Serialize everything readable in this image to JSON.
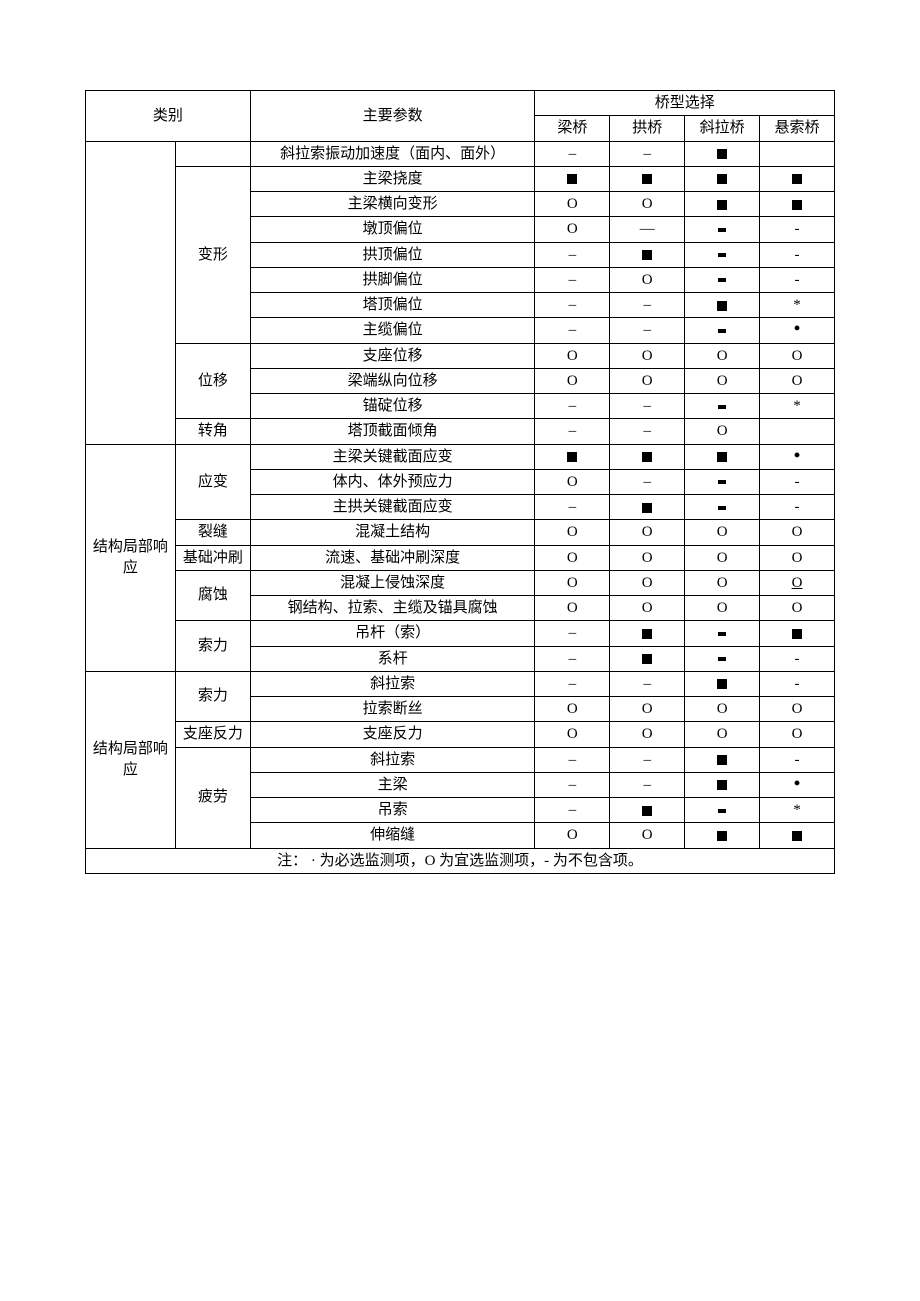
{
  "header": {
    "category": "类别",
    "param": "主要参数",
    "group": "桥型选择",
    "bridges": [
      "梁桥",
      "拱桥",
      "斜拉桥",
      "悬索桥"
    ]
  },
  "rows": [
    {
      "sub": "",
      "param": "斜拉索振动加速度（面内、面外）",
      "cells": [
        "–",
        "–",
        "sq",
        ""
      ]
    },
    {
      "sub": "变形",
      "param": "主梁挠度",
      "cells": [
        "sq",
        "sq",
        "sq",
        "sq"
      ]
    },
    {
      "sub": "",
      "param": "主梁横向变形",
      "cells": [
        "O",
        "O",
        "sq",
        "sq"
      ]
    },
    {
      "sub": "",
      "param": "墩顶偏位",
      "cells": [
        "O",
        "—",
        "dash",
        "-"
      ]
    },
    {
      "sub": "",
      "param": "拱顶偏位",
      "cells": [
        "–",
        "sq",
        "dash",
        "-"
      ]
    },
    {
      "sub": "",
      "param": "拱脚偏位",
      "cells": [
        "–",
        "O",
        "dash",
        "-"
      ]
    },
    {
      "sub": "",
      "param": "塔顶偏位",
      "cells": [
        "–",
        "–",
        "sq",
        "*"
      ]
    },
    {
      "sub": "",
      "param": "主缆偏位",
      "cells": [
        "–",
        "–",
        "dash",
        "dot"
      ]
    },
    {
      "sub": "位移",
      "param": "支座位移",
      "cells": [
        "O",
        "O",
        "O",
        "O"
      ]
    },
    {
      "sub": "",
      "param": "梁端纵向位移",
      "cells": [
        "O",
        "O",
        "O",
        "O"
      ]
    },
    {
      "sub": "",
      "param": "锚碇位移",
      "cells": [
        "–",
        "–",
        "dash",
        "*"
      ]
    },
    {
      "sub": "转角",
      "param": "塔顶截面倾角",
      "cells": [
        "–",
        "–",
        "O",
        ""
      ]
    },
    {
      "cat": "结构局部响应",
      "sub": "应变",
      "param": "主梁关键截面应变",
      "cells": [
        "sq",
        "sq",
        "sq",
        "dot"
      ]
    },
    {
      "sub": "",
      "param": "体内、体外预应力",
      "cells": [
        "O",
        "–",
        "dash",
        "-"
      ]
    },
    {
      "sub": "",
      "param": "主拱关键截面应变",
      "cells": [
        "–",
        "sq",
        "dash",
        "-"
      ]
    },
    {
      "sub": "裂缝",
      "param": "混凝土结构",
      "cells": [
        "O",
        "O",
        "O",
        "O"
      ]
    },
    {
      "sub": "基础冲刷",
      "param": "流速、基础冲刷深度",
      "cells": [
        "O",
        "O",
        "O",
        "O"
      ]
    },
    {
      "sub": "腐蚀",
      "param": "混凝上侵蚀深度",
      "cells": [
        "O",
        "O",
        "O",
        "O_"
      ]
    },
    {
      "sub": "",
      "param": "钢结构、拉索、主缆及锚具腐蚀",
      "cells": [
        "O",
        "O",
        "O",
        "O"
      ]
    },
    {
      "sub": "索力",
      "param": "吊杆（索）",
      "cells": [
        "–",
        "sq",
        "dash",
        "sq"
      ]
    },
    {
      "sub": "",
      "param": "系杆",
      "cells": [
        "–",
        "sq",
        "dash",
        "-"
      ]
    },
    {
      "cat": "结构局部响应",
      "sub": "索力",
      "param": "斜拉索",
      "cells": [
        "–",
        "–",
        "sq",
        "-"
      ]
    },
    {
      "sub": "",
      "param": "拉索断丝",
      "cells": [
        "O",
        "O",
        "O",
        "O"
      ]
    },
    {
      "sub": "支座反力",
      "param": "支座反力",
      "cells": [
        "O",
        "O",
        "O",
        "O"
      ]
    },
    {
      "sub": "疲劳",
      "param": "斜拉索",
      "cells": [
        "–",
        "–",
        "sq",
        "-"
      ]
    },
    {
      "sub": "",
      "param": "主梁",
      "cells": [
        "–",
        "–",
        "sq",
        "dot"
      ]
    },
    {
      "sub": "",
      "param": "吊索",
      "cells": [
        "–",
        "sq",
        "dash",
        "*"
      ]
    },
    {
      "sub": "",
      "param": "伸缩缝",
      "cells": [
        "O",
        "O",
        "sq",
        "sq"
      ]
    }
  ],
  "footnote": "注：  · 为必选监测项，O 为宜选监测项，- 为不包含项。"
}
